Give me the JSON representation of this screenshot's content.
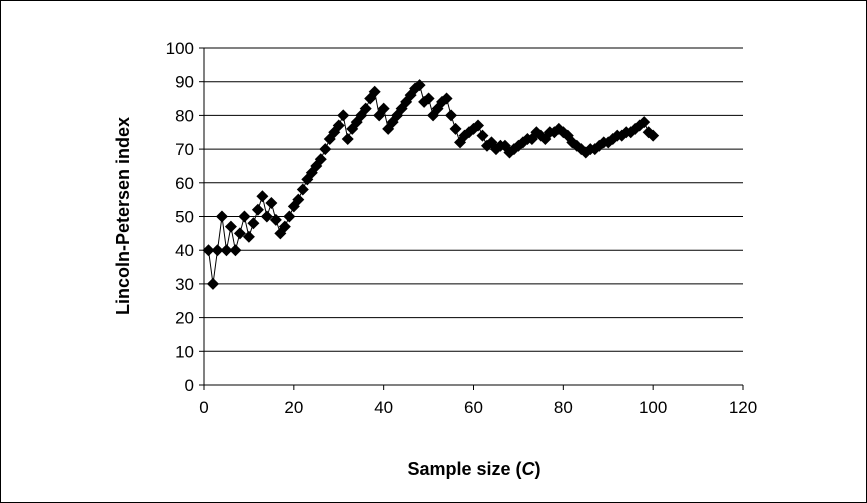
{
  "chart_data": {
    "type": "scatter",
    "title": "",
    "xlabel": "Sample size (",
    "xlabel_var": "C",
    "xlabel_close": ")",
    "ylabel": "Lincoln-Petersen index",
    "xlim": [
      0,
      120
    ],
    "ylim": [
      0,
      100
    ],
    "xticks": [
      0,
      20,
      40,
      60,
      80,
      100,
      120
    ],
    "yticks": [
      0,
      10,
      20,
      30,
      40,
      50,
      60,
      70,
      80,
      90,
      100
    ],
    "grid": "horizontal",
    "legend": "none",
    "marker": "diamond",
    "connected": true,
    "colors": {
      "marker": "#000000",
      "grid": "#000000",
      "axis": "#000000"
    },
    "series": [
      {
        "x": [
          1,
          2,
          3,
          4,
          5,
          6,
          7,
          8,
          9,
          10,
          11,
          12,
          13,
          14,
          15,
          16,
          17,
          18,
          19,
          20,
          21,
          22,
          23,
          24,
          25,
          26,
          27,
          28,
          29,
          30,
          31,
          32,
          33,
          34,
          35,
          36,
          37,
          38,
          39,
          40,
          41,
          42,
          43,
          44,
          45,
          46,
          47,
          48,
          49,
          50,
          51,
          52,
          53,
          54,
          55,
          56,
          57,
          58,
          59,
          60,
          61,
          62,
          63,
          64,
          65,
          66,
          67,
          68,
          69,
          70,
          71,
          72,
          73,
          74,
          75,
          76,
          77,
          78,
          79,
          80,
          81,
          82,
          83,
          84,
          85,
          86,
          87,
          88,
          89,
          90,
          91,
          92,
          93,
          94,
          95,
          96,
          97,
          98,
          99,
          100
        ],
        "y": [
          40,
          30,
          40,
          50,
          40,
          47,
          40,
          45,
          50,
          44,
          48,
          52,
          56,
          50,
          54,
          49,
          45,
          47,
          50,
          53,
          55,
          58,
          61,
          63,
          65,
          67,
          70,
          73,
          75,
          77,
          80,
          73,
          76,
          78,
          80,
          82,
          85,
          87,
          80,
          82,
          76,
          78,
          80,
          82,
          84,
          86,
          88,
          89,
          84,
          85,
          80,
          82,
          84,
          85,
          80,
          76,
          72,
          74,
          75,
          76,
          77,
          74,
          71,
          72,
          70,
          71,
          71,
          69,
          70,
          71,
          72,
          73,
          73,
          75,
          74,
          73,
          75,
          75,
          76,
          75,
          74,
          72,
          71,
          70,
          69,
          70,
          70,
          71,
          72,
          72,
          73,
          74,
          74,
          75,
          75,
          76,
          77,
          78,
          75,
          74
        ]
      }
    ]
  }
}
